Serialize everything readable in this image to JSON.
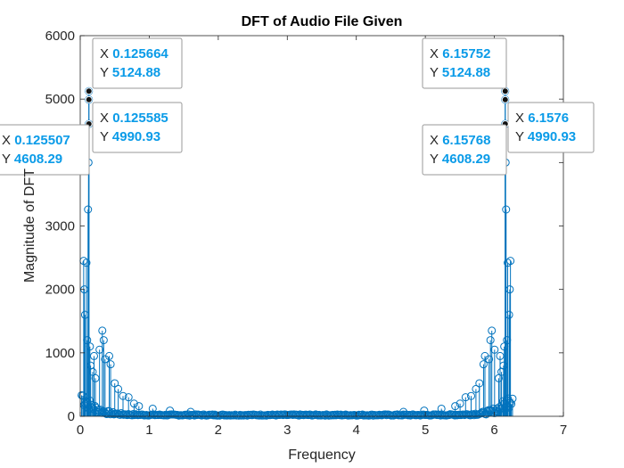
{
  "chart_data": {
    "type": "stem",
    "title": "DFT of Audio File Given",
    "xlabel": "Frequency",
    "ylabel": "Magnitude of DFT",
    "xlim": [
      0,
      7
    ],
    "ylim": [
      0,
      6000
    ],
    "xticks": [
      "0",
      "1",
      "2",
      "3",
      "4",
      "5",
      "6",
      "7"
    ],
    "yticks": [
      "0",
      "1000",
      "2000",
      "3000",
      "4000",
      "5000",
      "6000"
    ],
    "grid": false,
    "series_color": "#0072bd",
    "x_max": 6.2832,
    "peaks_left": [
      {
        "x": 0.05,
        "y": 2450
      },
      {
        "x": 0.06,
        "y": 2000
      },
      {
        "x": 0.07,
        "y": 1600
      },
      {
        "x": 0.09,
        "y": 2420
      },
      {
        "x": 0.1,
        "y": 1200
      },
      {
        "x": 0.113,
        "y": 3260
      },
      {
        "x": 0.12,
        "y": 4000
      },
      {
        "x": 0.125507,
        "y": 4608.29
      },
      {
        "x": 0.125585,
        "y": 4990.93
      },
      {
        "x": 0.125664,
        "y": 5124.88
      },
      {
        "x": 0.14,
        "y": 1100
      },
      {
        "x": 0.15,
        "y": 800
      },
      {
        "x": 0.18,
        "y": 700
      },
      {
        "x": 0.2,
        "y": 950
      },
      {
        "x": 0.22,
        "y": 600
      },
      {
        "x": 0.28,
        "y": 1050
      },
      {
        "x": 0.32,
        "y": 1350
      },
      {
        "x": 0.34,
        "y": 1200
      },
      {
        "x": 0.36,
        "y": 900
      },
      {
        "x": 0.42,
        "y": 950
      },
      {
        "x": 0.44,
        "y": 820
      },
      {
        "x": 0.5,
        "y": 520
      },
      {
        "x": 0.55,
        "y": 430
      },
      {
        "x": 0.62,
        "y": 320
      },
      {
        "x": 0.7,
        "y": 300
      },
      {
        "x": 0.78,
        "y": 200
      },
      {
        "x": 0.85,
        "y": 160
      },
      {
        "x": 1.05,
        "y": 120
      },
      {
        "x": 1.3,
        "y": 90
      },
      {
        "x": 1.6,
        "y": 70
      }
    ],
    "datatips": [
      {
        "x_label": "X",
        "x_value": "0.125664",
        "y_label": "Y",
        "y_value": "5124.88"
      },
      {
        "x_label": "X",
        "x_value": "0.125585",
        "y_label": "Y",
        "y_value": "4990.93"
      },
      {
        "x_label": "X",
        "x_value": "0.125507",
        "y_label": "Y",
        "y_value": "4608.29"
      },
      {
        "x_label": "X",
        "x_value": "6.15752",
        "y_label": "Y",
        "y_value": "5124.88"
      },
      {
        "x_label": "X",
        "x_value": "6.1576",
        "y_label": "Y",
        "y_value": "4990.93"
      },
      {
        "x_label": "X",
        "x_value": "6.15768",
        "y_label": "Y",
        "y_value": "4608.29"
      }
    ]
  }
}
